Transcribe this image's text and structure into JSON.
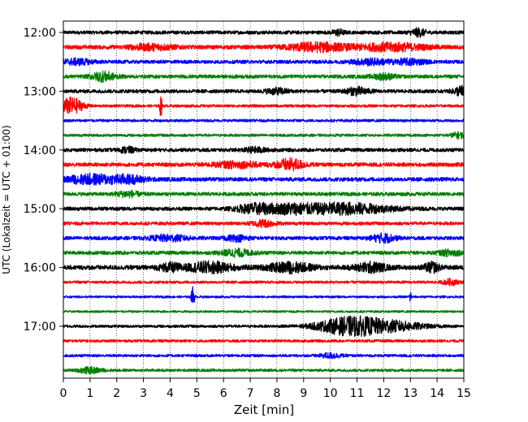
{
  "chart_data": {
    "type": "line",
    "title": "",
    "xlabel": "Zeit  [min]",
    "ylabel": "UTC (Lokalzeit = UTC + 01:00)",
    "xlim": [
      0,
      15
    ],
    "x_ticks": [
      "0",
      "1",
      "2",
      "3",
      "4",
      "5",
      "6",
      "7",
      "8",
      "9",
      "10",
      "11",
      "12",
      "13",
      "14",
      "15"
    ],
    "y_tick_labels": [
      "12:00",
      "13:00",
      "14:00",
      "15:00",
      "16:00",
      "17:00"
    ],
    "rows_per_hour": 4,
    "grid": "vertical dotted at each minute",
    "colors": [
      "#000000",
      "#ff0000",
      "#0000ff",
      "#008000"
    ],
    "series": [
      {
        "start": "12:00",
        "color": "#000000",
        "amplitude": 0.2,
        "bursts": [
          [
            13.3,
            0.2,
            0.4
          ],
          [
            10.3,
            0.15,
            0.3
          ]
        ]
      },
      {
        "start": "12:15",
        "color": "#ff0000",
        "amplitude": 0.22,
        "bursts": [
          [
            9.5,
            0.8,
            0.45
          ],
          [
            12.3,
            0.9,
            0.4
          ],
          [
            3.3,
            0.6,
            0.3
          ]
        ]
      },
      {
        "start": "12:30",
        "color": "#0000ff",
        "amplitude": 0.2,
        "bursts": [
          [
            0.5,
            0.4,
            0.3
          ],
          [
            11.5,
            0.5,
            0.3
          ],
          [
            13.0,
            0.4,
            0.3
          ]
        ]
      },
      {
        "start": "12:45",
        "color": "#008000",
        "amplitude": 0.2,
        "bursts": [
          [
            1.5,
            0.3,
            0.5
          ],
          [
            12.0,
            0.3,
            0.3
          ]
        ]
      },
      {
        "start": "13:00",
        "color": "#000000",
        "amplitude": 0.2,
        "bursts": [
          [
            11.0,
            0.3,
            0.4
          ],
          [
            14.9,
            0.2,
            0.5
          ],
          [
            8.0,
            0.3,
            0.3
          ]
        ]
      },
      {
        "start": "13:15",
        "color": "#ff0000",
        "amplitude": 0.15,
        "bursts": [
          [
            0.3,
            0.3,
            0.9
          ],
          [
            3.65,
            0.03,
            1.3
          ]
        ]
      },
      {
        "start": "13:30",
        "color": "#0000ff",
        "amplitude": 0.15,
        "bursts": []
      },
      {
        "start": "13:45",
        "color": "#008000",
        "amplitude": 0.15,
        "bursts": [
          [
            14.8,
            0.2,
            0.3
          ]
        ]
      },
      {
        "start": "14:00",
        "color": "#000000",
        "amplitude": 0.2,
        "bursts": [
          [
            2.4,
            0.2,
            0.3
          ],
          [
            7.2,
            0.3,
            0.25
          ]
        ]
      },
      {
        "start": "14:15",
        "color": "#ff0000",
        "amplitude": 0.22,
        "bursts": [
          [
            8.5,
            0.35,
            0.6
          ],
          [
            6.5,
            0.6,
            0.3
          ]
        ]
      },
      {
        "start": "14:30",
        "color": "#0000ff",
        "amplitude": 0.22,
        "bursts": [
          [
            1.0,
            0.6,
            0.5
          ],
          [
            2.4,
            0.5,
            0.4
          ]
        ]
      },
      {
        "start": "14:45",
        "color": "#008000",
        "amplitude": 0.2,
        "bursts": [
          [
            2.4,
            0.3,
            0.3
          ]
        ]
      },
      {
        "start": "15:00",
        "color": "#000000",
        "amplitude": 0.2,
        "bursts": [
          [
            10.5,
            1.2,
            0.6
          ],
          [
            7.2,
            0.5,
            0.5
          ],
          [
            8.5,
            0.6,
            0.4
          ]
        ]
      },
      {
        "start": "15:15",
        "color": "#ff0000",
        "amplitude": 0.18,
        "bursts": [
          [
            7.5,
            0.3,
            0.35
          ]
        ]
      },
      {
        "start": "15:30",
        "color": "#0000ff",
        "amplitude": 0.2,
        "bursts": [
          [
            4.0,
            0.5,
            0.3
          ],
          [
            12.0,
            0.3,
            0.45
          ],
          [
            6.5,
            0.3,
            0.3
          ]
        ]
      },
      {
        "start": "15:45",
        "color": "#008000",
        "amplitude": 0.2,
        "bursts": [
          [
            6.5,
            0.4,
            0.35
          ],
          [
            14.5,
            0.3,
            0.3
          ]
        ]
      },
      {
        "start": "16:00",
        "color": "#000000",
        "amplitude": 0.25,
        "bursts": [
          [
            5.5,
            0.6,
            0.55
          ],
          [
            8.5,
            0.6,
            0.5
          ],
          [
            11.5,
            0.4,
            0.5
          ],
          [
            13.8,
            0.2,
            0.5
          ],
          [
            4.0,
            0.3,
            0.4
          ]
        ]
      },
      {
        "start": "16:15",
        "color": "#ff0000",
        "amplitude": 0.15,
        "bursts": [
          [
            14.5,
            0.2,
            0.3
          ]
        ]
      },
      {
        "start": "16:30",
        "color": "#0000ff",
        "amplitude": 0.12,
        "bursts": [
          [
            4.85,
            0.04,
            1.2
          ],
          [
            13.0,
            0.03,
            0.6
          ]
        ]
      },
      {
        "start": "16:45",
        "color": "#008000",
        "amplitude": 0.12,
        "bursts": []
      },
      {
        "start": "17:00",
        "color": "#000000",
        "amplitude": 0.15,
        "bursts": [
          [
            10.8,
            0.9,
            1.0
          ],
          [
            12.5,
            0.8,
            0.4
          ]
        ]
      },
      {
        "start": "17:15",
        "color": "#ff0000",
        "amplitude": 0.15,
        "bursts": []
      },
      {
        "start": "17:30",
        "color": "#0000ff",
        "amplitude": 0.15,
        "bursts": [
          [
            10.0,
            0.3,
            0.25
          ]
        ]
      },
      {
        "start": "17:45",
        "color": "#008000",
        "amplitude": 0.15,
        "bursts": [
          [
            1.0,
            0.3,
            0.3
          ]
        ]
      }
    ]
  }
}
